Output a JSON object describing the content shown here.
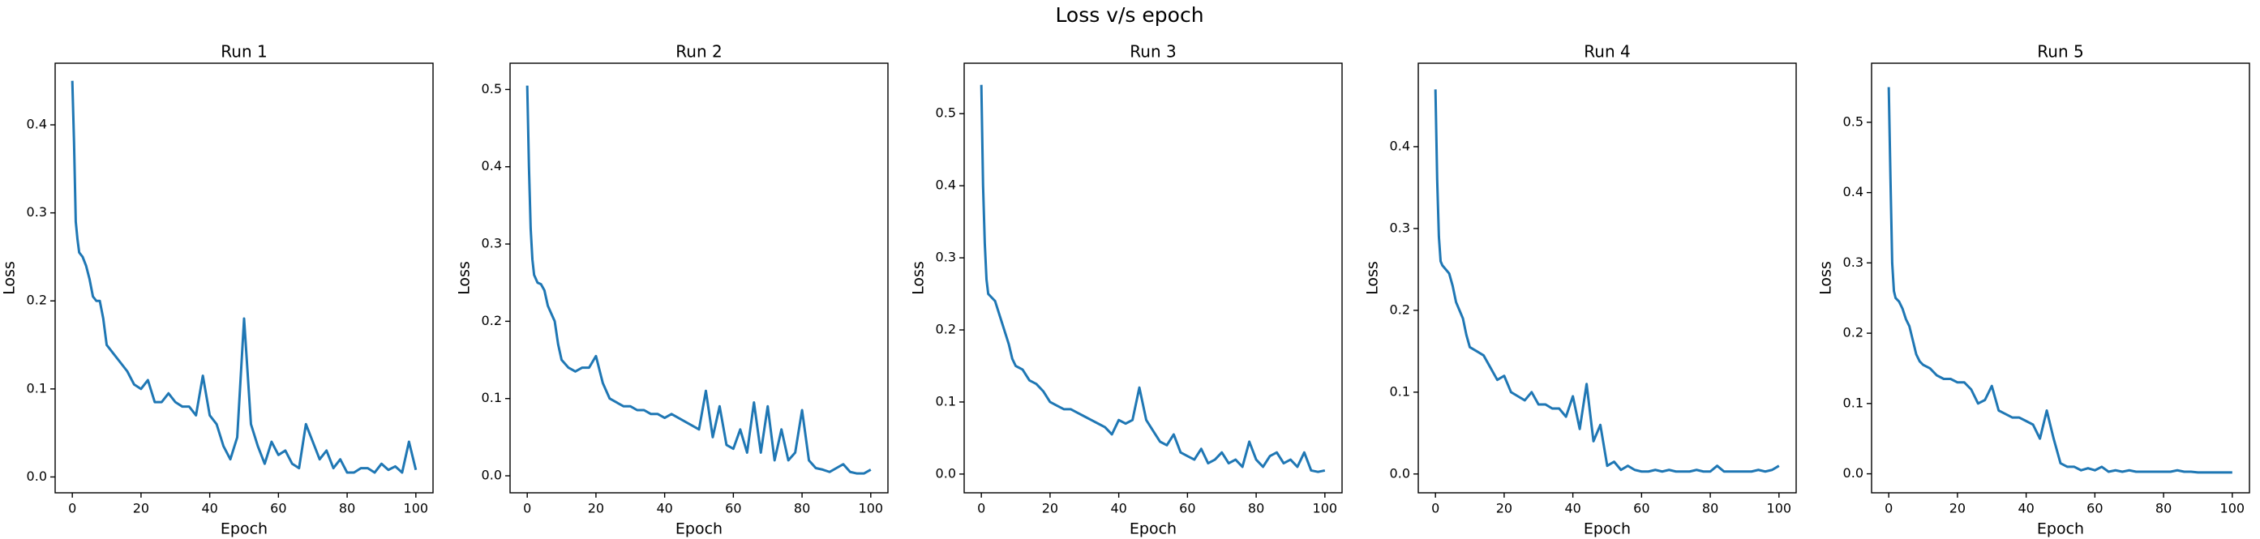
{
  "title": "Loss v/s epoch",
  "chart_data": [
    {
      "type": "line",
      "title": "Run 1",
      "xlabel": "Epoch",
      "ylabel": "Loss",
      "color": "#1f77b4",
      "x": [
        0,
        0.5,
        1,
        1.5,
        2,
        3,
        4,
        5,
        6,
        7,
        8,
        9,
        10,
        12,
        14,
        16,
        18,
        20,
        22,
        24,
        26,
        28,
        30,
        32,
        34,
        36,
        38,
        40,
        42,
        44,
        46,
        48,
        50,
        52,
        54,
        56,
        58,
        60,
        62,
        64,
        66,
        68,
        70,
        72,
        74,
        76,
        78,
        80,
        82,
        84,
        86,
        88,
        90,
        92,
        94,
        96,
        98,
        100
      ],
      "values": [
        0.45,
        0.38,
        0.29,
        0.27,
        0.255,
        0.25,
        0.24,
        0.225,
        0.205,
        0.2,
        0.2,
        0.18,
        0.15,
        0.14,
        0.13,
        0.12,
        0.105,
        0.1,
        0.11,
        0.085,
        0.085,
        0.095,
        0.085,
        0.08,
        0.08,
        0.07,
        0.115,
        0.07,
        0.06,
        0.035,
        0.02,
        0.045,
        0.18,
        0.06,
        0.035,
        0.015,
        0.04,
        0.025,
        0.03,
        0.015,
        0.01,
        0.06,
        0.04,
        0.02,
        0.03,
        0.01,
        0.02,
        0.005,
        0.005,
        0.01,
        0.01,
        0.005,
        0.015,
        0.008,
        0.012,
        0.005,
        0.04,
        0.008
      ],
      "xlim": [
        -5,
        105
      ],
      "xticks": [
        0,
        20,
        40,
        60,
        80,
        100
      ],
      "ylim": [
        -0.018,
        0.47
      ],
      "yticks": [
        {
          "value": 0,
          "label": "0.0"
        },
        0.1,
        0.2,
        0.3,
        0.4
      ]
    },
    {
      "type": "line",
      "title": "Run 2",
      "xlabel": "Epoch",
      "ylabel": "Loss",
      "color": "#1f77b4",
      "x": [
        0,
        0.5,
        1,
        1.5,
        2,
        3,
        4,
        5,
        6,
        7,
        8,
        9,
        10,
        12,
        14,
        16,
        18,
        20,
        22,
        24,
        26,
        28,
        30,
        32,
        34,
        36,
        38,
        40,
        42,
        44,
        46,
        48,
        50,
        52,
        54,
        56,
        58,
        60,
        62,
        64,
        66,
        68,
        70,
        72,
        74,
        76,
        78,
        80,
        82,
        84,
        86,
        88,
        90,
        92,
        94,
        96,
        98,
        100
      ],
      "values": [
        0.505,
        0.4,
        0.32,
        0.28,
        0.26,
        0.25,
        0.248,
        0.24,
        0.22,
        0.21,
        0.2,
        0.17,
        0.15,
        0.14,
        0.135,
        0.14,
        0.14,
        0.155,
        0.12,
        0.1,
        0.095,
        0.09,
        0.09,
        0.085,
        0.085,
        0.08,
        0.08,
        0.075,
        0.08,
        0.075,
        0.07,
        0.065,
        0.06,
        0.11,
        0.05,
        0.09,
        0.04,
        0.035,
        0.06,
        0.03,
        0.095,
        0.03,
        0.09,
        0.02,
        0.06,
        0.02,
        0.03,
        0.085,
        0.02,
        0.01,
        0.008,
        0.005,
        0.01,
        0.015,
        0.005,
        0.003,
        0.003,
        0.008
      ],
      "xlim": [
        -5,
        105
      ],
      "xticks": [
        0,
        20,
        40,
        60,
        80,
        100
      ],
      "ylim": [
        -0.022,
        0.534
      ],
      "yticks": [
        {
          "value": 0,
          "label": "0.0"
        },
        0.1,
        0.2,
        0.3,
        0.4,
        0.5
      ]
    },
    {
      "type": "line",
      "title": "Run 3",
      "xlabel": "Epoch",
      "ylabel": "Loss",
      "color": "#1f77b4",
      "x": [
        0,
        0.5,
        1,
        1.5,
        2,
        3,
        4,
        5,
        6,
        7,
        8,
        9,
        10,
        12,
        14,
        16,
        18,
        20,
        22,
        24,
        26,
        28,
        30,
        32,
        34,
        36,
        38,
        40,
        42,
        44,
        46,
        48,
        50,
        52,
        54,
        56,
        58,
        60,
        62,
        64,
        66,
        68,
        70,
        72,
        74,
        76,
        78,
        80,
        82,
        84,
        86,
        88,
        90,
        92,
        94,
        96,
        98,
        100
      ],
      "values": [
        0.54,
        0.4,
        0.32,
        0.27,
        0.25,
        0.245,
        0.24,
        0.225,
        0.21,
        0.195,
        0.18,
        0.16,
        0.15,
        0.145,
        0.13,
        0.125,
        0.115,
        0.1,
        0.095,
        0.09,
        0.09,
        0.085,
        0.08,
        0.075,
        0.07,
        0.065,
        0.055,
        0.075,
        0.07,
        0.075,
        0.12,
        0.075,
        0.06,
        0.045,
        0.04,
        0.055,
        0.03,
        0.025,
        0.02,
        0.035,
        0.015,
        0.02,
        0.03,
        0.015,
        0.02,
        0.01,
        0.045,
        0.02,
        0.01,
        0.025,
        0.03,
        0.015,
        0.02,
        0.01,
        0.03,
        0.005,
        0.003,
        0.005
      ],
      "xlim": [
        -5,
        105
      ],
      "xticks": [
        0,
        20,
        40,
        60,
        80,
        100
      ],
      "ylim": [
        -0.026,
        0.57
      ],
      "yticks": [
        {
          "value": 0,
          "label": "0.0"
        },
        0.1,
        0.2,
        0.3,
        0.4,
        0.5
      ]
    },
    {
      "type": "line",
      "title": "Run 4",
      "xlabel": "Epoch",
      "ylabel": "Loss",
      "color": "#1f77b4",
      "x": [
        0,
        0.5,
        1,
        1.5,
        2,
        3,
        4,
        5,
        6,
        7,
        8,
        9,
        10,
        12,
        14,
        16,
        18,
        20,
        22,
        24,
        26,
        28,
        30,
        32,
        34,
        36,
        38,
        40,
        42,
        44,
        46,
        48,
        50,
        52,
        54,
        56,
        58,
        60,
        62,
        64,
        66,
        68,
        70,
        72,
        74,
        76,
        78,
        80,
        82,
        84,
        86,
        88,
        90,
        92,
        94,
        96,
        98,
        100
      ],
      "values": [
        0.47,
        0.36,
        0.29,
        0.26,
        0.255,
        0.25,
        0.245,
        0.23,
        0.21,
        0.2,
        0.19,
        0.17,
        0.155,
        0.15,
        0.145,
        0.13,
        0.115,
        0.12,
        0.1,
        0.095,
        0.09,
        0.1,
        0.085,
        0.085,
        0.08,
        0.08,
        0.07,
        0.095,
        0.055,
        0.11,
        0.04,
        0.06,
        0.01,
        0.015,
        0.005,
        0.01,
        0.005,
        0.003,
        0.003,
        0.005,
        0.003,
        0.005,
        0.003,
        0.003,
        0.003,
        0.005,
        0.003,
        0.003,
        0.01,
        0.003,
        0.003,
        0.003,
        0.003,
        0.003,
        0.005,
        0.003,
        0.005,
        0.01
      ],
      "xlim": [
        -5,
        105
      ],
      "xticks": [
        0,
        20,
        40,
        60,
        80,
        100
      ],
      "ylim": [
        -0.023,
        0.502
      ],
      "yticks": [
        {
          "value": 0,
          "label": "0.0"
        },
        0.1,
        0.2,
        0.3,
        0.4
      ]
    },
    {
      "type": "line",
      "title": "Run 5",
      "xlabel": "Epoch",
      "ylabel": "Loss",
      "color": "#1f77b4",
      "x": [
        0,
        0.5,
        1,
        1.5,
        2,
        3,
        4,
        5,
        6,
        7,
        8,
        9,
        10,
        12,
        14,
        16,
        18,
        20,
        22,
        24,
        26,
        28,
        30,
        32,
        34,
        36,
        38,
        40,
        42,
        44,
        46,
        48,
        50,
        52,
        54,
        56,
        58,
        60,
        62,
        64,
        66,
        68,
        70,
        72,
        74,
        76,
        78,
        80,
        82,
        84,
        86,
        88,
        90,
        92,
        94,
        96,
        98,
        100
      ],
      "values": [
        0.55,
        0.42,
        0.3,
        0.26,
        0.25,
        0.245,
        0.235,
        0.22,
        0.21,
        0.19,
        0.17,
        0.16,
        0.155,
        0.15,
        0.14,
        0.135,
        0.135,
        0.13,
        0.13,
        0.12,
        0.1,
        0.105,
        0.125,
        0.09,
        0.085,
        0.08,
        0.08,
        0.075,
        0.07,
        0.05,
        0.09,
        0.05,
        0.015,
        0.01,
        0.01,
        0.005,
        0.008,
        0.005,
        0.01,
        0.003,
        0.005,
        0.003,
        0.005,
        0.003,
        0.003,
        0.003,
        0.003,
        0.003,
        0.003,
        0.005,
        0.003,
        0.003,
        0.002,
        0.002,
        0.002,
        0.002,
        0.002,
        0.002
      ],
      "xlim": [
        -5,
        105
      ],
      "xticks": [
        0,
        20,
        40,
        60,
        80,
        100
      ],
      "ylim": [
        -0.027,
        0.584
      ],
      "yticks": [
        {
          "value": 0,
          "label": "0.0"
        },
        0.1,
        0.2,
        0.3,
        0.4,
        0.5
      ]
    }
  ]
}
